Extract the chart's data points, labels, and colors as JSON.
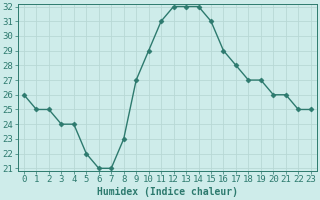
{
  "x": [
    0,
    1,
    2,
    3,
    4,
    5,
    6,
    7,
    8,
    9,
    10,
    11,
    12,
    13,
    14,
    15,
    16,
    17,
    18,
    19,
    20,
    21,
    22,
    23
  ],
  "y": [
    26,
    25,
    25,
    24,
    24,
    22,
    21,
    21,
    23,
    27,
    29,
    31,
    32,
    32,
    32,
    31,
    29,
    28,
    27,
    27,
    26,
    26,
    25,
    25
  ],
  "line_color": "#2d7a6e",
  "marker_color": "#2d7a6e",
  "bg_color": "#ceecea",
  "grid_major_color": "#b8d8d5",
  "grid_minor_color": "#d4eceb",
  "xlabel": "Humidex (Indice chaleur)",
  "ylim_min": 21,
  "ylim_max": 32,
  "xlim_min": -0.5,
  "xlim_max": 23.5,
  "yticks": [
    21,
    22,
    23,
    24,
    25,
    26,
    27,
    28,
    29,
    30,
    31,
    32
  ],
  "xticks": [
    0,
    1,
    2,
    3,
    4,
    5,
    6,
    7,
    8,
    9,
    10,
    11,
    12,
    13,
    14,
    15,
    16,
    17,
    18,
    19,
    20,
    21,
    22,
    23
  ],
  "xtick_labels": [
    "0",
    "1",
    "2",
    "3",
    "4",
    "5",
    "6",
    "7",
    "8",
    "9",
    "10",
    "11",
    "12",
    "13",
    "14",
    "15",
    "16",
    "17",
    "18",
    "19",
    "20",
    "21",
    "22",
    "23"
  ],
  "xlabel_fontsize": 7,
  "tick_fontsize": 6.5,
  "linewidth": 1.0,
  "markersize": 2.5
}
